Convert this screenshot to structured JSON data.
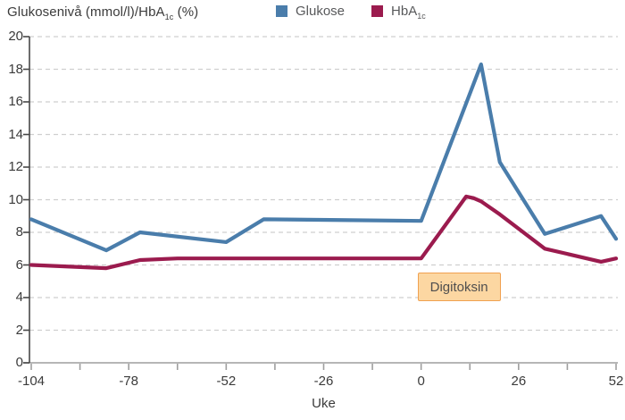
{
  "header": {
    "title": {
      "pre": "Glukosenivå (mmol/l)/HbA",
      "sub": "1c",
      "post": " (%)"
    },
    "legend": [
      {
        "label": "Glukose",
        "sub": "",
        "color": "#4a7dab"
      },
      {
        "label": "HbA",
        "sub": "1c",
        "color": "#9b1b4e"
      }
    ]
  },
  "chart_data": {
    "type": "line",
    "title": "Glukosenivå (mmol/l)/HbA1c (%)",
    "xlabel": "Uke",
    "ylabel": "",
    "x": {
      "range": [
        -104,
        52
      ],
      "minor_tick_step": 13,
      "tick_labels": [
        "-104",
        "-78",
        "-52",
        "-26",
        "0",
        "26",
        "52"
      ],
      "tick_label_weeks": [
        -104,
        -78,
        -52,
        -26,
        0,
        26,
        52
      ]
    },
    "y": {
      "range": [
        0,
        20
      ],
      "tick_step": 2,
      "ticks": [
        0,
        2,
        4,
        6,
        8,
        10,
        12,
        14,
        16,
        18,
        20
      ]
    },
    "grid": "horizontal-dashed",
    "legend_position": "top",
    "series": [
      {
        "name": "HbA1c",
        "color": "#9b1b4e",
        "points": [
          [
            -104,
            6.0
          ],
          [
            -84,
            5.8
          ],
          [
            -75,
            6.3
          ],
          [
            -65,
            6.4
          ],
          [
            0,
            6.4
          ],
          [
            12,
            10.2
          ],
          [
            14,
            10.1
          ],
          [
            16,
            9.9
          ],
          [
            21,
            9.1
          ],
          [
            33,
            7.0
          ],
          [
            48,
            6.2
          ],
          [
            52,
            6.4
          ]
        ]
      },
      {
        "name": "Glukose",
        "color": "#4a7dab",
        "points": [
          [
            -104,
            8.8
          ],
          [
            -84,
            6.9
          ],
          [
            -75,
            8.0
          ],
          [
            -52,
            7.4
          ],
          [
            -42,
            8.8
          ],
          [
            0,
            8.7
          ],
          [
            16,
            18.3
          ],
          [
            21,
            12.3
          ],
          [
            33,
            7.9
          ],
          [
            48,
            9.0
          ],
          [
            52,
            7.6
          ]
        ]
      }
    ],
    "annotation": {
      "text": "Digitoksin",
      "week_start": 0,
      "week_end": 20,
      "value_center": 4.65,
      "bg": "#fcd7a2",
      "border": "#f0a150",
      "text_color": "#4f4f4f"
    }
  }
}
